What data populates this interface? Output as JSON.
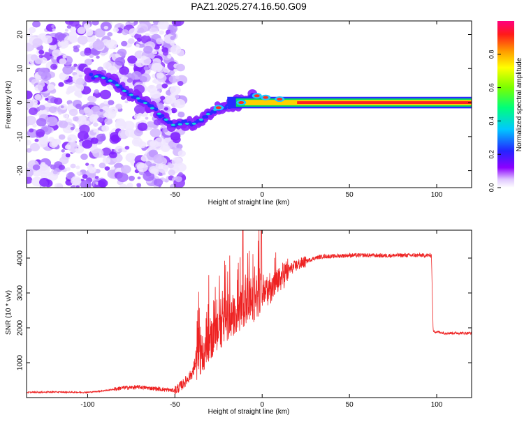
{
  "title": "PAZ1.2025.274.16.50.G09",
  "colors": {
    "snr_line": "#ee2222",
    "axis": "#000000",
    "background": "#ffffff"
  },
  "chart_data": [
    {
      "type": "heatmap",
      "name": "spectrogram",
      "xlabel": "Height of straight line (km)",
      "ylabel": "Frequency (Hz)",
      "xlim": [
        -135,
        120
      ],
      "ylim": [
        -25,
        24
      ],
      "xticks": [
        -100,
        -50,
        0,
        50,
        100
      ],
      "yticks": [
        -20,
        -10,
        0,
        10,
        20
      ],
      "colorbar": {
        "label": "Normalized spectral amplitude",
        "ticks": [
          0.0,
          0.2,
          0.4,
          0.6,
          0.8
        ],
        "range": [
          0,
          1
        ]
      },
      "ridge": [
        {
          "x": -100,
          "y": 8
        },
        {
          "x": -92,
          "y": 7.5
        },
        {
          "x": -85,
          "y": 6
        },
        {
          "x": -78,
          "y": 3
        },
        {
          "x": -70,
          "y": 1
        },
        {
          "x": -62,
          "y": -2
        },
        {
          "x": -55,
          "y": -5
        },
        {
          "x": -50,
          "y": -7
        },
        {
          "x": -45,
          "y": -6
        },
        {
          "x": -40,
          "y": -6.5
        },
        {
          "x": -35,
          "y": -5
        },
        {
          "x": -30,
          "y": -3
        },
        {
          "x": -25,
          "y": -1.5
        },
        {
          "x": -20,
          "y": -1.5
        },
        {
          "x": -15,
          "y": 0
        },
        {
          "x": -10,
          "y": 0
        },
        {
          "x": -5,
          "y": 2
        },
        {
          "x": 0,
          "y": 2
        },
        {
          "x": 5,
          "y": 1
        },
        {
          "x": 10,
          "y": 1
        },
        {
          "x": 20,
          "y": 0
        },
        {
          "x": 50,
          "y": 0
        },
        {
          "x": 90,
          "y": 0
        },
        {
          "x": 120,
          "y": 0
        }
      ]
    },
    {
      "type": "line",
      "name": "snr",
      "xlabel": "Height of straight line (km)",
      "ylabel": "SNR (10 * v/v)",
      "xlim": [
        -135,
        120
      ],
      "ylim": [
        0,
        4800
      ],
      "xticks": [
        -100,
        -50,
        0,
        50,
        100
      ],
      "yticks": [
        1000,
        2000,
        3000,
        4000
      ],
      "series": [
        {
          "name": "SNR",
          "x": [
            -135,
            -120,
            -100,
            -90,
            -80,
            -70,
            -60,
            -50,
            -45,
            -40,
            -35,
            -30,
            -25,
            -20,
            -15,
            -10,
            -5,
            0,
            5,
            10,
            15,
            20,
            25,
            30,
            35,
            40,
            50,
            60,
            70,
            80,
            90,
            97,
            98,
            105,
            110,
            120
          ],
          "values": [
            150,
            160,
            150,
            200,
            280,
            300,
            250,
            200,
            400,
            700,
            1200,
            1600,
            1900,
            2100,
            2400,
            2550,
            2700,
            2900,
            3100,
            3400,
            3650,
            3800,
            3900,
            4000,
            4050,
            4050,
            4080,
            4080,
            4070,
            4080,
            4080,
            4080,
            1900,
            1850,
            1850,
            1850
          ]
        }
      ]
    }
  ]
}
